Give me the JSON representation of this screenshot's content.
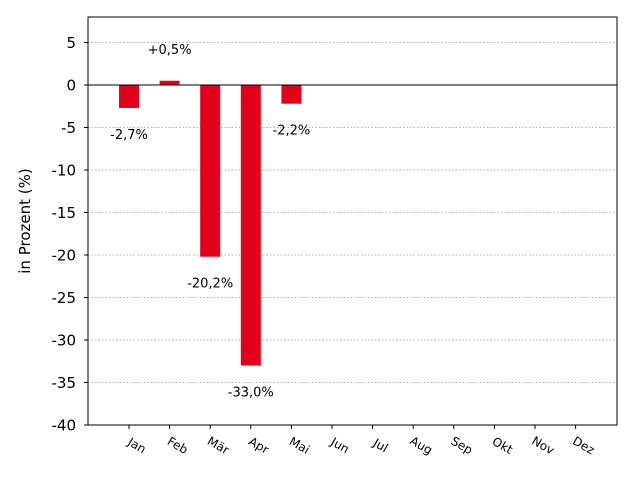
{
  "chart_data": {
    "type": "bar",
    "title": "",
    "xlabel": "",
    "ylabel": "in Prozent (%)",
    "ylim": [
      -40,
      8
    ],
    "yticks": [
      5,
      0,
      -5,
      -10,
      -15,
      -20,
      -25,
      -30,
      -35,
      -40
    ],
    "ytick_labels": [
      "5",
      "0",
      "-5",
      "-10",
      "-15",
      "-20",
      "-25",
      "-30",
      "-35",
      "-40"
    ],
    "categories": [
      "Jan",
      "Feb",
      "Mär",
      "Apr",
      "Mai",
      "Jun",
      "Jul",
      "Aug",
      "Sep",
      "Okt",
      "Nov",
      "Dez"
    ],
    "values": [
      -2.7,
      0.5,
      -20.2,
      -33.0,
      -2.2,
      0,
      0,
      0,
      0,
      0,
      0,
      0
    ],
    "data_labels": [
      "-2,7%",
      "+0,5%",
      "-20,2%",
      "-33,0%",
      "-2,2%",
      "",
      "",
      "",
      "",
      "",
      "",
      ""
    ],
    "bar_color": "#e3001b",
    "grid": "horizontal-dotted",
    "zero_line": true
  }
}
